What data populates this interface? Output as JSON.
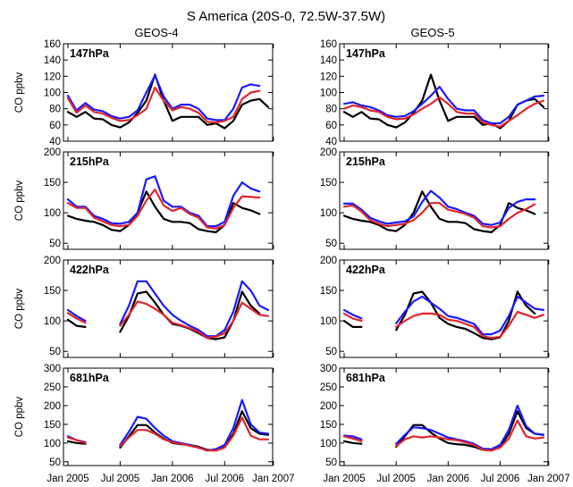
{
  "figure": {
    "title": "S America (20S-0, 72.5W-37.5W)",
    "column_titles": [
      "GEOS-4",
      "GEOS-5"
    ],
    "ylabel": "CO ppbv",
    "x_ticks": [
      "Jan 2005",
      "Jul 2005",
      "Jan 2006",
      "Jul 2006",
      "Jan 2007"
    ],
    "series_colors": [
      "#000000",
      "#1a1aff",
      "#e0262b"
    ]
  },
  "chart_data": [
    {
      "type": "line",
      "column": "GEOS-4",
      "level": "147hPa",
      "ylim": [
        40,
        160
      ],
      "yticks": [
        40,
        60,
        80,
        100,
        120,
        140,
        160
      ],
      "series": [
        {
          "values": [
            76,
            70,
            76,
            68,
            67,
            60,
            57,
            63,
            75,
            90,
            122,
            90,
            65,
            70,
            70,
            70,
            60,
            62,
            56,
            65,
            85,
            90,
            92,
            82
          ]
        },
        {
          "values": [
            96,
            78,
            87,
            79,
            77,
            71,
            68,
            70,
            78,
            100,
            121,
            95,
            80,
            85,
            85,
            80,
            68,
            66,
            66,
            80,
            106,
            110,
            108,
            null
          ]
        },
        {
          "values": [
            93,
            75,
            84,
            76,
            74,
            69,
            65,
            66,
            72,
            80,
            106,
            90,
            78,
            82,
            80,
            75,
            64,
            63,
            65,
            70,
            92,
            100,
            102,
            null
          ]
        }
      ]
    },
    {
      "type": "line",
      "column": "GEOS-5",
      "level": "147hPa",
      "ylim": [
        40,
        160
      ],
      "yticks": [
        40,
        60,
        80,
        100,
        120,
        140,
        160
      ],
      "series": [
        {
          "values": [
            76,
            70,
            76,
            68,
            67,
            60,
            57,
            63,
            75,
            90,
            122,
            90,
            65,
            70,
            70,
            70,
            60,
            62,
            56,
            65,
            85,
            90,
            92,
            82
          ]
        },
        {
          "values": [
            86,
            88,
            84,
            82,
            78,
            72,
            70,
            71,
            77,
            86,
            96,
            107,
            92,
            80,
            78,
            78,
            66,
            62,
            62,
            70,
            85,
            90,
            95,
            96
          ]
        },
        {
          "values": [
            80,
            84,
            82,
            78,
            76,
            70,
            67,
            68,
            73,
            80,
            86,
            94,
            86,
            76,
            74,
            74,
            63,
            60,
            58,
            65,
            72,
            80,
            86,
            90
          ]
        }
      ]
    },
    {
      "type": "line",
      "column": "GEOS-4",
      "level": "215hPa",
      "ylim": [
        40,
        200
      ],
      "yticks": [
        50,
        100,
        150,
        200
      ],
      "series": [
        {
          "values": [
            95,
            90,
            87,
            85,
            80,
            72,
            70,
            80,
            100,
            135,
            110,
            90,
            85,
            85,
            83,
            73,
            70,
            68,
            80,
            116,
            108,
            104,
            98,
            null
          ]
        },
        {
          "values": [
            122,
            110,
            110,
            95,
            90,
            83,
            82,
            85,
            100,
            155,
            160,
            120,
            110,
            110,
            100,
            95,
            78,
            78,
            85,
            128,
            150,
            140,
            135,
            null
          ]
        },
        {
          "values": [
            116,
            108,
            108,
            92,
            86,
            80,
            78,
            80,
            95,
            120,
            138,
            112,
            103,
            108,
            98,
            92,
            76,
            74,
            80,
            108,
            127,
            126,
            125,
            null
          ]
        }
      ]
    },
    {
      "type": "line",
      "column": "GEOS-5",
      "level": "215hPa",
      "ylim": [
        40,
        200
      ],
      "yticks": [
        50,
        100,
        150,
        200
      ],
      "series": [
        {
          "values": [
            95,
            90,
            87,
            85,
            80,
            72,
            70,
            80,
            100,
            135,
            110,
            90,
            85,
            85,
            83,
            73,
            70,
            68,
            80,
            116,
            108,
            104,
            98,
            null
          ]
        },
        {
          "values": [
            115,
            115,
            105,
            92,
            86,
            82,
            84,
            86,
            94,
            118,
            136,
            125,
            110,
            106,
            100,
            95,
            82,
            80,
            84,
            108,
            118,
            122,
            122,
            null
          ]
        },
        {
          "values": [
            110,
            112,
            102,
            88,
            82,
            78,
            80,
            82,
            88,
            100,
            116,
            116,
            105,
            102,
            98,
            92,
            78,
            76,
            78,
            90,
            100,
            106,
            114,
            null
          ]
        }
      ]
    },
    {
      "type": "line",
      "column": "GEOS-4",
      "level": "422hPa",
      "ylim": [
        40,
        200
      ],
      "yticks": [
        50,
        100,
        150,
        200
      ],
      "series": [
        {
          "values": [
            102,
            92,
            90,
            null,
            null,
            null,
            82,
            108,
            145,
            148,
            130,
            110,
            95,
            92,
            87,
            80,
            72,
            70,
            73,
            100,
            148,
            125,
            112,
            null
          ]
        },
        {
          "values": [
            118,
            108,
            100,
            null,
            null,
            null,
            95,
            125,
            165,
            165,
            145,
            125,
            110,
            100,
            92,
            85,
            75,
            75,
            85,
            115,
            165,
            150,
            125,
            118
          ]
        },
        {
          "values": [
            113,
            104,
            97,
            null,
            null,
            null,
            92,
            110,
            132,
            128,
            120,
            110,
            97,
            93,
            88,
            82,
            72,
            74,
            80,
            100,
            130,
            120,
            110,
            108
          ]
        }
      ]
    },
    {
      "type": "line",
      "column": "GEOS-5",
      "level": "422hPa",
      "ylim": [
        40,
        200
      ],
      "yticks": [
        50,
        100,
        150,
        200
      ],
      "series": [
        {
          "values": [
            100,
            90,
            90,
            null,
            null,
            null,
            85,
            110,
            145,
            148,
            130,
            105,
            95,
            90,
            87,
            80,
            72,
            70,
            73,
            100,
            148,
            125,
            112,
            null
          ]
        },
        {
          "values": [
            118,
            110,
            104,
            null,
            null,
            null,
            96,
            115,
            132,
            140,
            130,
            120,
            108,
            105,
            100,
            95,
            78,
            78,
            84,
            108,
            140,
            130,
            120,
            118
          ]
        },
        {
          "values": [
            112,
            104,
            100,
            null,
            null,
            null,
            90,
            100,
            108,
            112,
            112,
            110,
            102,
            100,
            95,
            90,
            75,
            72,
            74,
            92,
            115,
            110,
            105,
            110
          ]
        }
      ]
    },
    {
      "type": "line",
      "column": "GEOS-4",
      "level": "681hPa",
      "ylim": [
        40,
        300
      ],
      "yticks": [
        50,
        100,
        150,
        200,
        250,
        300
      ],
      "series": [
        {
          "values": [
            105,
            100,
            98,
            null,
            null,
            null,
            88,
            118,
            148,
            148,
            128,
            112,
            100,
            97,
            95,
            90,
            82,
            80,
            90,
            125,
            185,
            140,
            125,
            122
          ]
        },
        {
          "values": [
            118,
            108,
            102,
            null,
            null,
            null,
            95,
            130,
            170,
            165,
            140,
            120,
            105,
            100,
            95,
            88,
            80,
            84,
            95,
            140,
            215,
            150,
            128,
            125
          ]
        },
        {
          "values": [
            115,
            108,
            100,
            null,
            null,
            null,
            92,
            115,
            135,
            135,
            125,
            110,
            102,
            98,
            93,
            88,
            80,
            80,
            88,
            120,
            168,
            120,
            110,
            110
          ]
        }
      ]
    },
    {
      "type": "line",
      "column": "GEOS-5",
      "level": "681hPa",
      "ylim": [
        40,
        300
      ],
      "yticks": [
        50,
        100,
        150,
        200,
        250,
        300
      ],
      "series": [
        {
          "values": [
            105,
            100,
            98,
            null,
            null,
            null,
            90,
            118,
            148,
            148,
            128,
            112,
            100,
            97,
            95,
            90,
            82,
            80,
            90,
            125,
            185,
            140,
            125,
            122
          ]
        },
        {
          "values": [
            120,
            118,
            110,
            null,
            null,
            null,
            98,
            122,
            142,
            140,
            135,
            125,
            115,
            110,
            105,
            98,
            85,
            84,
            95,
            135,
            200,
            145,
            125,
            122
          ]
        },
        {
          "values": [
            118,
            112,
            105,
            null,
            null,
            null,
            92,
            110,
            118,
            115,
            118,
            115,
            110,
            108,
            102,
            95,
            82,
            80,
            88,
            112,
            160,
            118,
            112,
            115
          ]
        }
      ]
    }
  ]
}
